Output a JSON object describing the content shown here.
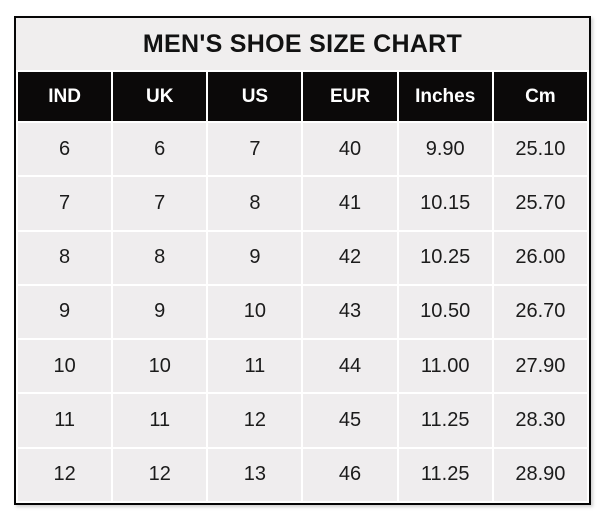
{
  "chart_data": {
    "type": "table",
    "title": "MEN'S SHOE SIZE CHART",
    "columns": [
      "IND",
      "UK",
      "US",
      "EUR",
      "Inches",
      "Cm"
    ],
    "rows": [
      [
        "6",
        "6",
        "7",
        "40",
        "9.90",
        "25.10"
      ],
      [
        "7",
        "7",
        "8",
        "41",
        "10.15",
        "25.70"
      ],
      [
        "8",
        "8",
        "9",
        "42",
        "10.25",
        "26.00"
      ],
      [
        "9",
        "9",
        "10",
        "43",
        "10.50",
        "26.70"
      ],
      [
        "10",
        "10",
        "11",
        "44",
        "11.00",
        "27.90"
      ],
      [
        "11",
        "11",
        "12",
        "45",
        "11.25",
        "28.30"
      ],
      [
        "12",
        "12",
        "13",
        "46",
        "11.25",
        "28.90"
      ]
    ],
    "layout": {
      "grid": "white 2px separators",
      "header_position": "top"
    }
  },
  "colors": {
    "outer_border": "#060606",
    "title_band_bg": "#f0eeee",
    "header_bg": "#0b0909",
    "header_text": "#ffffff",
    "cell_bg": "#efedee",
    "cell_text": "#1b1b1b",
    "page_bg": "#ffffff"
  }
}
